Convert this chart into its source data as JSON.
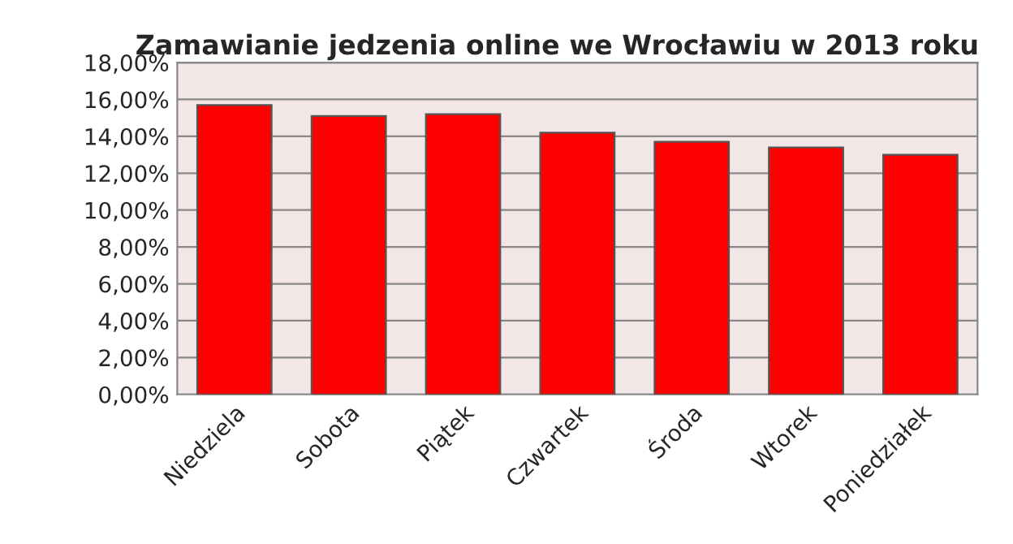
{
  "chart_data": {
    "type": "bar",
    "title": "Zamawianie jedzenia online we Wrocławiu w 2013 roku",
    "categories": [
      "Niedziela",
      "Sobota",
      "Piątek",
      "Czwartek",
      "Środa",
      "Wtorek",
      "Poniedziałek"
    ],
    "values": [
      15.7,
      15.1,
      15.2,
      14.2,
      13.7,
      13.4,
      13.0
    ],
    "color": "#ff0000",
    "ylim": [
      0,
      18
    ],
    "yticks": [
      {
        "value": 0,
        "label": "0,00%"
      },
      {
        "value": 2,
        "label": "2,00%"
      },
      {
        "value": 4,
        "label": "4,00%"
      },
      {
        "value": 6,
        "label": "6,00%"
      },
      {
        "value": 8,
        "label": "8,00%"
      },
      {
        "value": 10,
        "label": "10,00%"
      },
      {
        "value": 12,
        "label": "12,00%"
      },
      {
        "value": 14,
        "label": "14,00%"
      },
      {
        "value": 16,
        "label": "16,00%"
      },
      {
        "value": 18,
        "label": "18,00%"
      }
    ],
    "grid": "y",
    "legend": false
  }
}
